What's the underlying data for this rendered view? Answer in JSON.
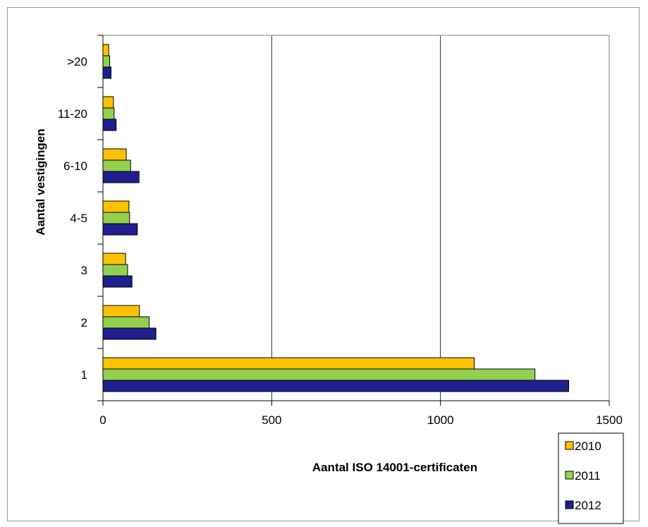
{
  "chart_data": {
    "type": "bar",
    "orientation": "horizontal",
    "categories": [
      "1",
      "2",
      "3",
      "4-5",
      "6-10",
      "11-20",
      ">20"
    ],
    "series": [
      {
        "name": "2010",
        "color": "#FFC000",
        "values": [
          1100,
          108,
          67,
          77,
          69,
          31,
          17
        ]
      },
      {
        "name": "2011",
        "color": "#92D050",
        "values": [
          1280,
          137,
          73,
          79,
          82,
          33,
          20
        ]
      },
      {
        "name": "2012",
        "color": "#1F1F8F",
        "values": [
          1380,
          157,
          86,
          102,
          107,
          39,
          24
        ]
      }
    ],
    "xlabel": "Aantal ISO 14001-certificaten",
    "ylabel": "Aantal vestigingen",
    "xlim": [
      0,
      1500
    ],
    "xticks": [
      0,
      500,
      1000,
      1500
    ],
    "grid": "vertical",
    "legend_position": "bottom-right"
  }
}
